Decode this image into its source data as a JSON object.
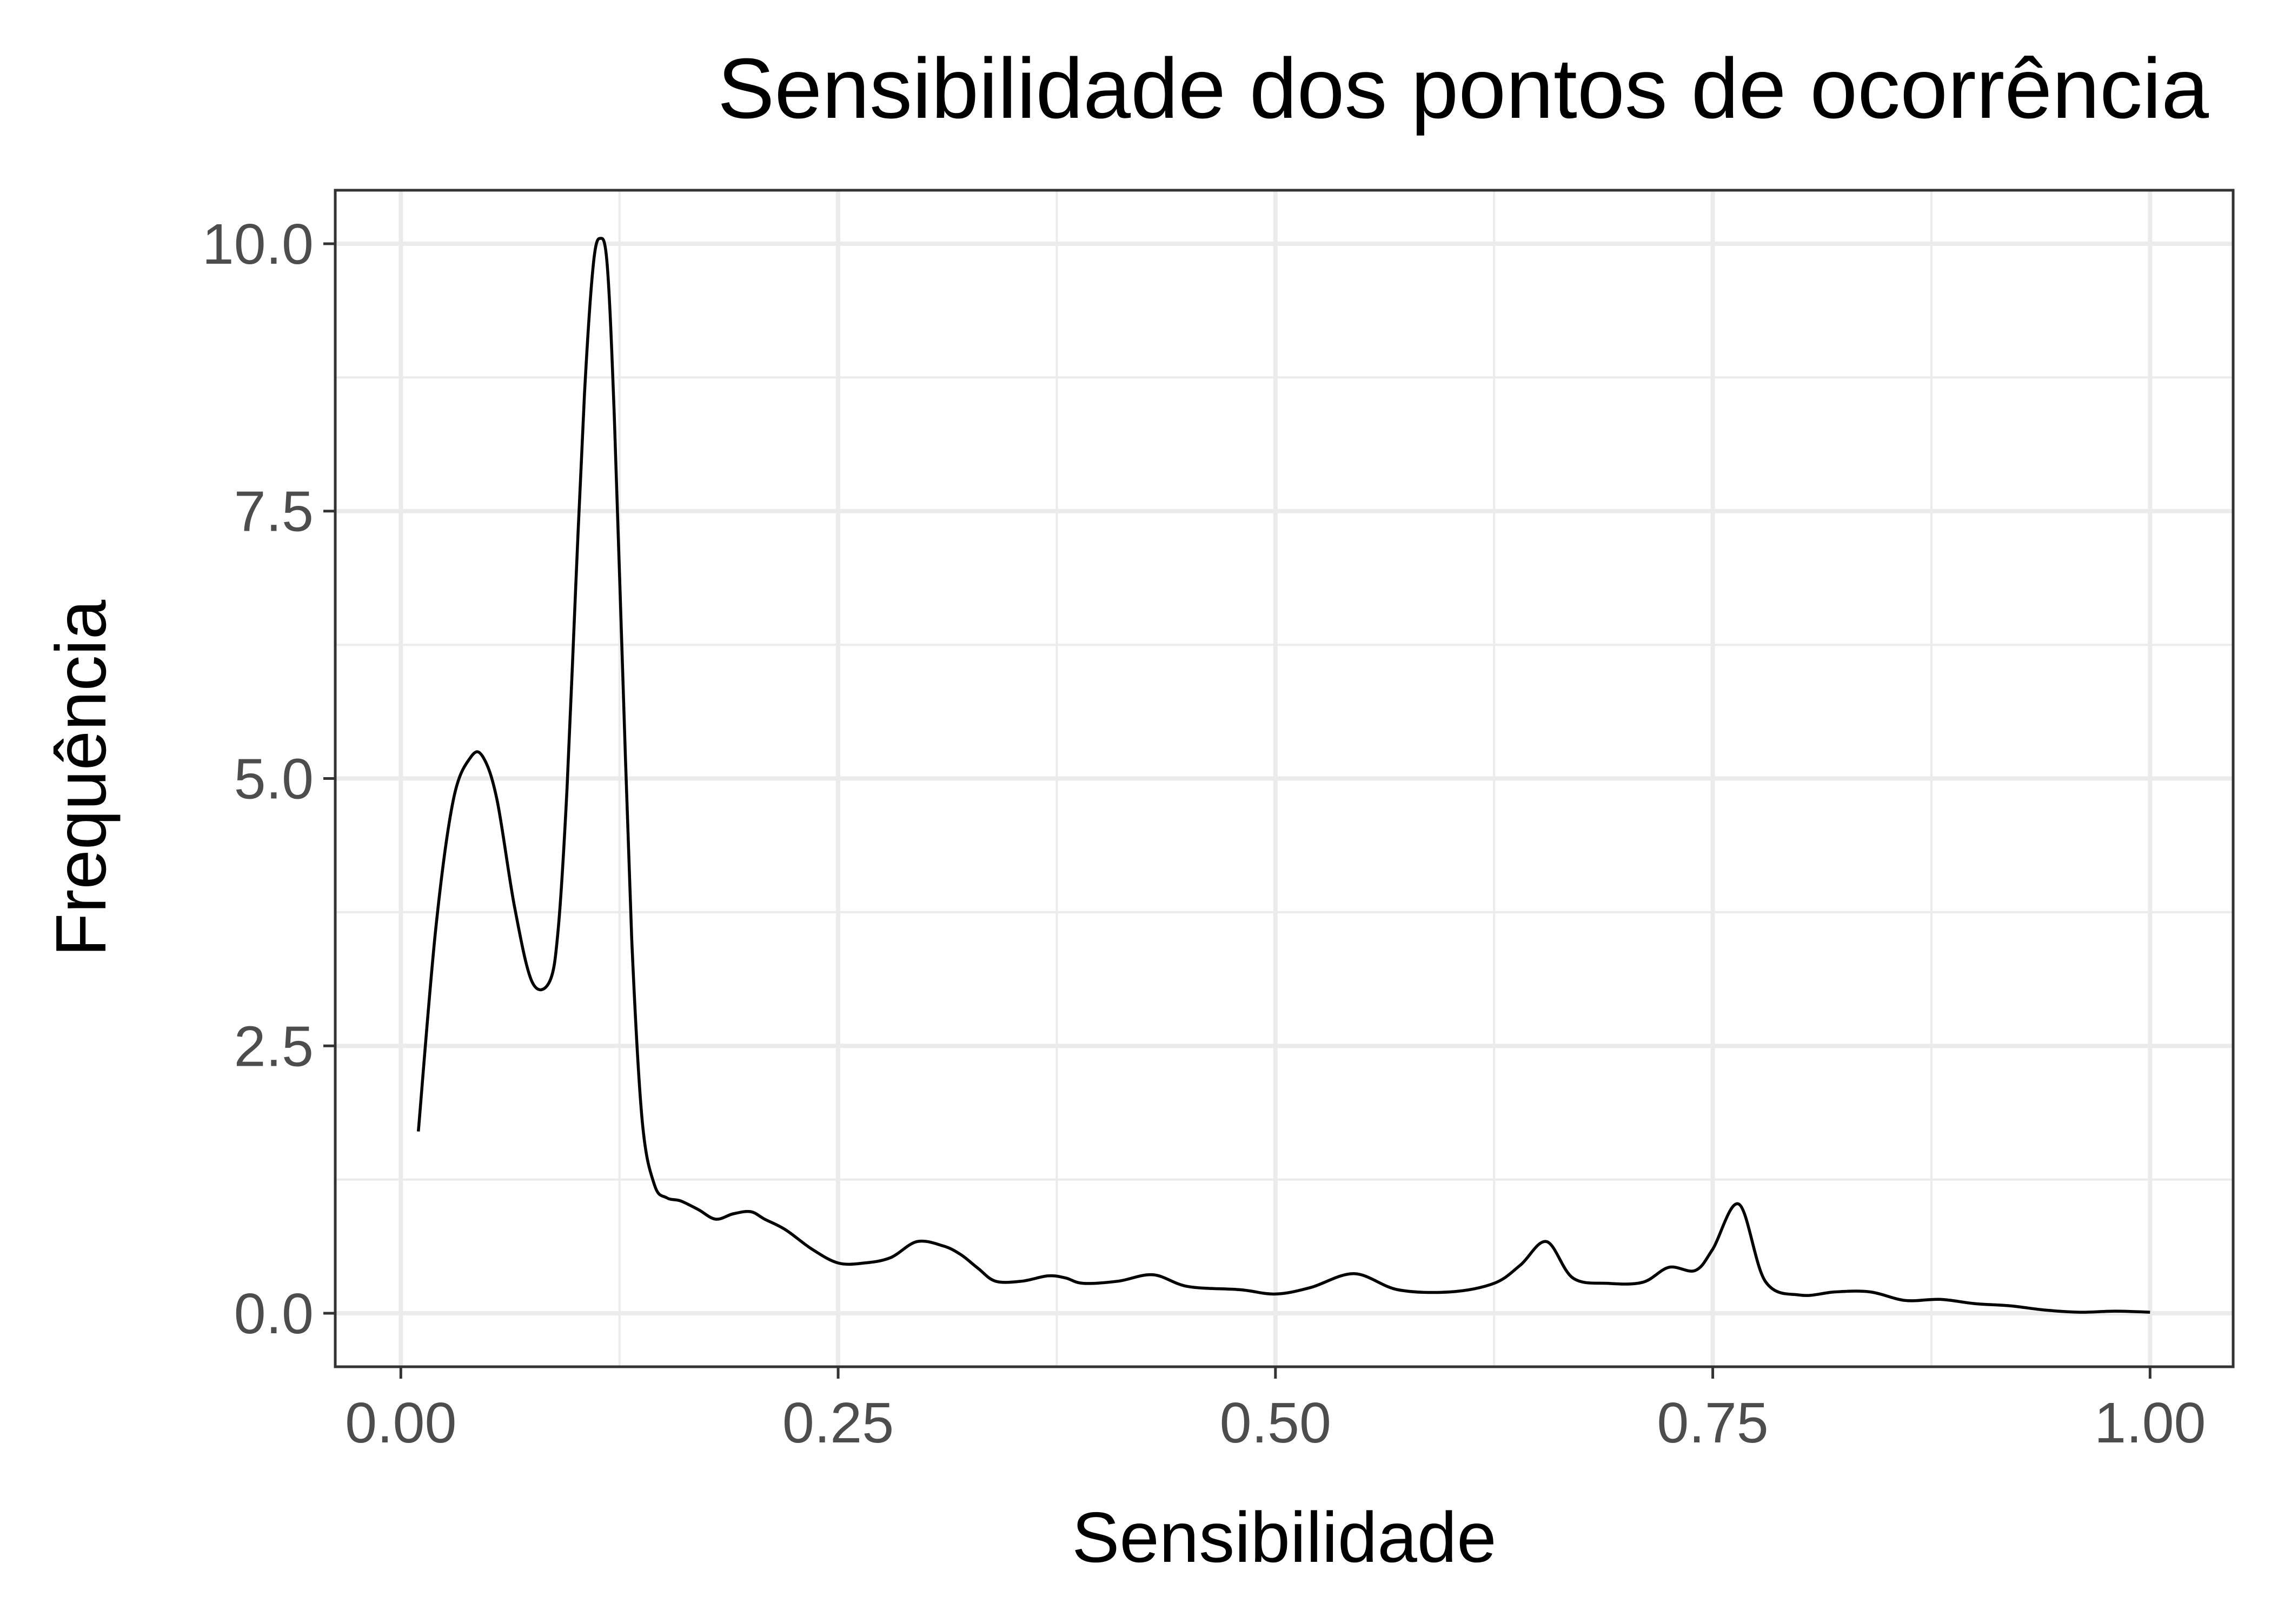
{
  "chart_data": {
    "type": "line",
    "title": "Sensibilidade dos pontos de ocorrência",
    "xlabel": "Sensibilidade",
    "ylabel": "Frequência",
    "xlim": [
      -0.0375,
      1.0475
    ],
    "ylim": [
      -0.5,
      10.5
    ],
    "x_ticks": [
      0.0,
      0.25,
      0.5,
      0.75,
      1.0
    ],
    "x_tick_labels": [
      "0.00",
      "0.25",
      "0.50",
      "0.75",
      "1.00"
    ],
    "x_minor_ticks": [
      0.125,
      0.375,
      0.625,
      0.875
    ],
    "y_ticks": [
      0.0,
      2.5,
      5.0,
      7.5,
      10.0
    ],
    "y_tick_labels": [
      "0.0",
      "2.5",
      "5.0",
      "7.5",
      "10.0"
    ],
    "y_minor_ticks": [
      1.25,
      3.75,
      6.25,
      8.75
    ],
    "grid": true,
    "legend": "none",
    "colors": {
      "line": "#000000",
      "grid": "#ebebeb",
      "panel_border": "#333333",
      "tick_label": "#4d4d4d"
    },
    "series": [
      {
        "x": [
          0.01,
          0.02,
          0.03,
          0.04,
          0.047,
          0.055,
          0.065,
          0.075,
          0.085,
          0.09,
          0.095,
          0.1,
          0.105,
          0.11,
          0.114,
          0.118,
          0.122,
          0.127,
          0.132,
          0.138,
          0.145,
          0.152,
          0.16,
          0.17,
          0.18,
          0.19,
          0.2,
          0.208,
          0.22,
          0.235,
          0.25,
          0.265,
          0.28,
          0.295,
          0.31,
          0.32,
          0.33,
          0.34,
          0.355,
          0.37,
          0.38,
          0.39,
          0.41,
          0.43,
          0.45,
          0.48,
          0.5,
          0.52,
          0.545,
          0.57,
          0.6,
          0.625,
          0.64,
          0.655,
          0.67,
          0.69,
          0.71,
          0.725,
          0.74,
          0.75,
          0.765,
          0.78,
          0.8,
          0.82,
          0.84,
          0.86,
          0.88,
          0.9,
          0.92,
          0.94,
          0.96,
          0.98,
          1.0
        ],
        "y": [
          1.7,
          3.6,
          4.8,
          5.2,
          5.2,
          4.8,
          3.8,
          3.1,
          3.1,
          3.6,
          4.9,
          6.8,
          8.6,
          9.8,
          10.05,
          9.8,
          8.4,
          5.9,
          3.5,
          1.8,
          1.2,
          1.08,
          1.05,
          0.97,
          0.88,
          0.93,
          0.95,
          0.88,
          0.78,
          0.6,
          0.47,
          0.47,
          0.52,
          0.67,
          0.63,
          0.55,
          0.42,
          0.3,
          0.3,
          0.35,
          0.33,
          0.28,
          0.3,
          0.36,
          0.25,
          0.22,
          0.18,
          0.24,
          0.37,
          0.22,
          0.2,
          0.28,
          0.45,
          0.67,
          0.33,
          0.28,
          0.29,
          0.43,
          0.4,
          0.6,
          1.02,
          0.3,
          0.17,
          0.2,
          0.2,
          0.12,
          0.13,
          0.09,
          0.07,
          0.03,
          0.01,
          0.02,
          0.01
        ]
      }
    ]
  }
}
